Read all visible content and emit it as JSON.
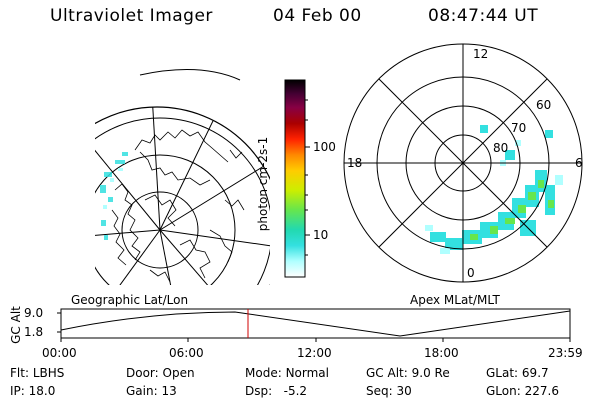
{
  "header": {
    "title": "Ultraviolet Imager",
    "date": "04 Feb 00",
    "time": "08:47:44 UT"
  },
  "colorbar": {
    "label": "photon cm-2s-1",
    "ticks": [
      "100",
      "10"
    ],
    "scale": "log",
    "colors": [
      "#ffffff",
      "#b0ffff",
      "#33e0e0",
      "#22d9b0",
      "#66e64d",
      "#ccee00",
      "#ffcc00",
      "#ff8800",
      "#ff2200",
      "#aa0000",
      "#880044",
      "#440033",
      "#000000"
    ]
  },
  "polar_plot": {
    "mlt_labels": [
      "12",
      "18",
      "6",
      "0"
    ],
    "mlat_labels": [
      "60",
      "70",
      "80"
    ]
  },
  "map_labels": {
    "left": "Geographic Lat/Lon",
    "right": "Apex MLat/MLT"
  },
  "altitude_plot": {
    "ylabel": "GC Alt",
    "yticks": [
      "9.0",
      "1.8"
    ],
    "xticks": [
      "00:00",
      "06:00",
      "12:00",
      "18:00",
      "23:59"
    ],
    "marker_time": "08:47:44"
  },
  "footer": {
    "row1": [
      {
        "label": "Flt:",
        "value": "LBHS"
      },
      {
        "label": "Door:",
        "value": "Open"
      },
      {
        "label": "Mode:",
        "value": "Normal"
      },
      {
        "label": "GC Alt:",
        "value": "9.0 Re"
      },
      {
        "label": "GLat:",
        "value": "69.7"
      }
    ],
    "row2": [
      {
        "label": "IP:",
        "value": "18.0"
      },
      {
        "label": "Gain:",
        "value": "13"
      },
      {
        "label": "Dsp:",
        "value": "-5.2"
      },
      {
        "label": "Seq:",
        "value": "30"
      },
      {
        "label": "GLon:",
        "value": "227.6"
      }
    ]
  }
}
